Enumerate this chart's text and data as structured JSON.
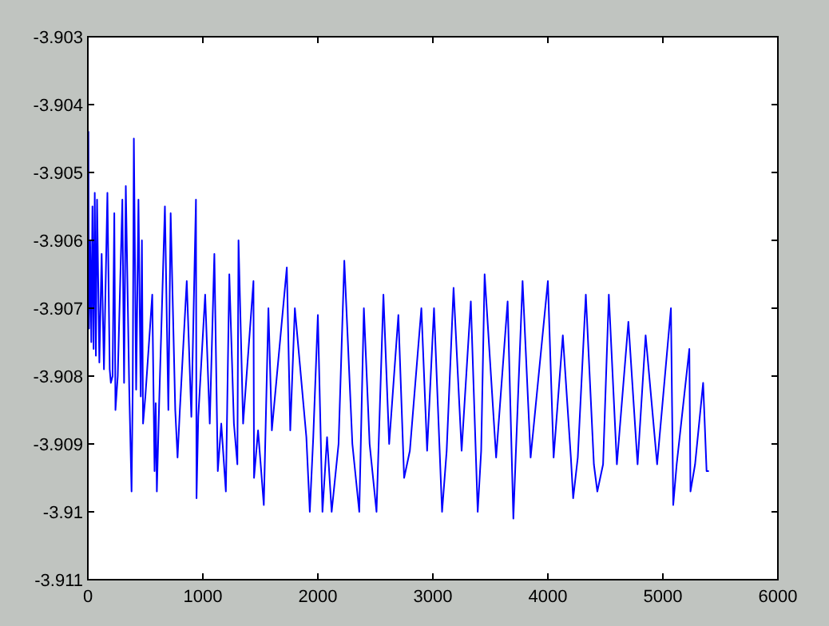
{
  "chart_data": {
    "type": "line",
    "xlim": [
      0,
      6000
    ],
    "ylim": [
      -3.911,
      -3.903
    ],
    "xticks": [
      0,
      1000,
      2000,
      3000,
      4000,
      5000,
      6000
    ],
    "yticks": [
      -3.911,
      -3.91,
      -3.909,
      -3.908,
      -3.907,
      -3.906,
      -3.905,
      -3.904,
      -3.903
    ],
    "grid": false,
    "marker": "none",
    "line_style": "solid",
    "series": [
      {
        "color": "#0000ff",
        "x": [
          0,
          5,
          10,
          20,
          30,
          40,
          50,
          60,
          70,
          80,
          100,
          120,
          140,
          170,
          190,
          200,
          215,
          230,
          240,
          260,
          300,
          315,
          330,
          360,
          380,
          390,
          400,
          420,
          440,
          460,
          470,
          480,
          500,
          560,
          580,
          590,
          600,
          620,
          670,
          700,
          720,
          760,
          780,
          800,
          860,
          900,
          940,
          945,
          960,
          1020,
          1060,
          1100,
          1130,
          1160,
          1200,
          1230,
          1270,
          1300,
          1310,
          1350,
          1440,
          1445,
          1480,
          1530,
          1570,
          1600,
          1730,
          1760,
          1800,
          1900,
          1930,
          1960,
          2000,
          2040,
          2080,
          2120,
          2180,
          2230,
          2300,
          2360,
          2400,
          2450,
          2510,
          2570,
          2620,
          2700,
          2750,
          2800,
          2900,
          2950,
          3010,
          3080,
          3120,
          3180,
          3250,
          3330,
          3390,
          3420,
          3450,
          3550,
          3650,
          3700,
          3720,
          3780,
          3850,
          4000,
          4050,
          4130,
          4200,
          4220,
          4260,
          4330,
          4400,
          4430,
          4480,
          4530,
          4600,
          4700,
          4780,
          4850,
          4950,
          5070,
          5090,
          5120,
          5230,
          5240,
          5280,
          5350,
          5380,
          5400
        ],
        "values": [
          -3.9072,
          -3.9044,
          -3.9073,
          -3.906,
          -3.9075,
          -3.9055,
          -3.9076,
          -3.9053,
          -3.9077,
          -3.9054,
          -3.9078,
          -3.9062,
          -3.9079,
          -3.9053,
          -3.9079,
          -3.9081,
          -3.908,
          -3.9056,
          -3.9085,
          -3.908,
          -3.9054,
          -3.9081,
          -3.9052,
          -3.9082,
          -3.9097,
          -3.9082,
          -3.9045,
          -3.9082,
          -3.9054,
          -3.9083,
          -3.906,
          -3.9087,
          -3.9083,
          -3.9068,
          -3.9094,
          -3.9084,
          -3.9097,
          -3.9084,
          -3.9055,
          -3.9085,
          -3.9056,
          -3.9085,
          -3.9092,
          -3.9085,
          -3.9066,
          -3.9086,
          -3.9054,
          -3.9098,
          -3.9086,
          -3.9068,
          -3.9087,
          -3.9062,
          -3.9094,
          -3.9087,
          -3.9097,
          -3.9065,
          -3.9087,
          -3.9093,
          -3.906,
          -3.9087,
          -3.9066,
          -3.9095,
          -3.9088,
          -3.9099,
          -3.907,
          -3.9088,
          -3.9064,
          -3.9088,
          -3.907,
          -3.9089,
          -3.91,
          -3.9089,
          -3.9071,
          -3.91,
          -3.9089,
          -3.91,
          -3.909,
          -3.9063,
          -3.909,
          -3.91,
          -3.907,
          -3.909,
          -3.91,
          -3.9068,
          -3.909,
          -3.9071,
          -3.9095,
          -3.9091,
          -3.907,
          -3.9091,
          -3.907,
          -3.91,
          -3.9091,
          -3.9067,
          -3.9091,
          -3.9069,
          -3.91,
          -3.9091,
          -3.9065,
          -3.9092,
          -3.9069,
          -3.9101,
          -3.9092,
          -3.9066,
          -3.9092,
          -3.9066,
          -3.9092,
          -3.9074,
          -3.9092,
          -3.9098,
          -3.9092,
          -3.9068,
          -3.9093,
          -3.9097,
          -3.9093,
          -3.9068,
          -3.9093,
          -3.9072,
          -3.9093,
          -3.9074,
          -3.9093,
          -3.907,
          -3.9099,
          -3.9093,
          -3.9076,
          -3.9097,
          -3.9093,
          -3.9081,
          -3.9094,
          -3.9094
        ]
      }
    ]
  }
}
